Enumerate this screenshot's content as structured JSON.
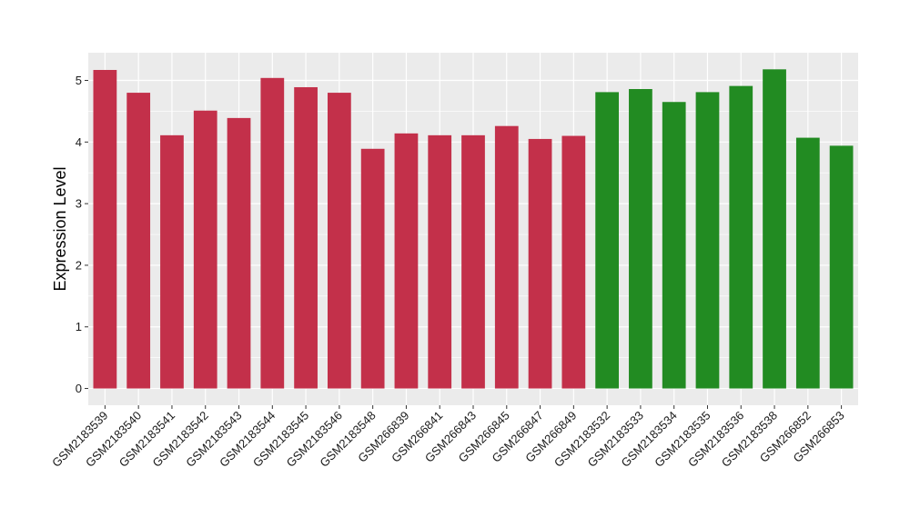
{
  "chart_data": {
    "type": "bar",
    "title": "",
    "xlabel": "",
    "ylabel": "Expression Level",
    "ylim": [
      0,
      5.45
    ],
    "yticks": [
      0,
      1,
      2,
      3,
      4,
      5
    ],
    "grid": true,
    "categories": [
      "GSM2183539",
      "GSM2183540",
      "GSM2183541",
      "GSM2183542",
      "GSM2183543",
      "GSM2183544",
      "GSM2183545",
      "GSM2183546",
      "GSM2183548",
      "GSM266839",
      "GSM266841",
      "GSM266843",
      "GSM266845",
      "GSM266847",
      "GSM266849",
      "GSM2183532",
      "GSM2183533",
      "GSM2183534",
      "GSM2183535",
      "GSM2183536",
      "GSM2183538",
      "GSM266852",
      "GSM266853"
    ],
    "values": [
      5.17,
      4.8,
      4.11,
      4.51,
      4.39,
      5.04,
      4.89,
      4.8,
      3.89,
      4.14,
      4.11,
      4.11,
      4.26,
      4.05,
      4.1,
      4.81,
      4.86,
      4.65,
      4.81,
      4.91,
      5.18,
      4.07,
      3.94
    ],
    "groups": [
      "red",
      "red",
      "red",
      "red",
      "red",
      "red",
      "red",
      "red",
      "red",
      "red",
      "red",
      "red",
      "red",
      "red",
      "red",
      "green",
      "green",
      "green",
      "green",
      "green",
      "green",
      "green",
      "green"
    ],
    "colors": {
      "red": "#c3304a",
      "green": "#228b22",
      "panel": "#ebebeb",
      "grid": "#ffffff"
    }
  }
}
